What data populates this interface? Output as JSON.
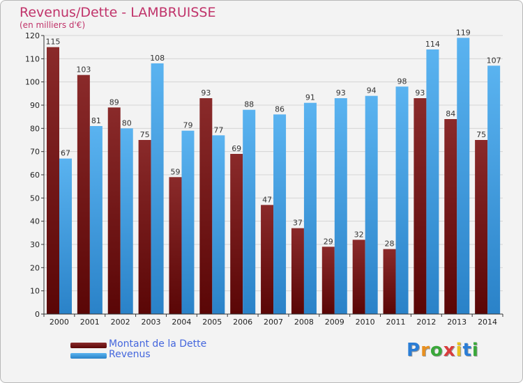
{
  "chart_data": {
    "type": "bar",
    "title": "Revenus/Dette - LAMBRUISSE",
    "subtitle": "(en milliers d'€)",
    "categories": [
      "2000",
      "2001",
      "2002",
      "2003",
      "2004",
      "2005",
      "2006",
      "2007",
      "2008",
      "2009",
      "2010",
      "2011",
      "2012",
      "2013",
      "2014"
    ],
    "series": [
      {
        "name": "Montant de la Dette",
        "color": "#7a1a1a",
        "values": [
          115,
          103,
          89,
          75,
          59,
          93,
          69,
          47,
          37,
          29,
          32,
          28,
          93,
          84,
          75
        ]
      },
      {
        "name": "Revenus",
        "color": "#3d9be0",
        "values": [
          67,
          81,
          80,
          108,
          79,
          77,
          88,
          86,
          91,
          93,
          94,
          98,
          114,
          119,
          107
        ]
      }
    ],
    "ylim": [
      0,
      120
    ],
    "yticks": [
      0,
      10,
      20,
      30,
      40,
      50,
      60,
      70,
      80,
      90,
      100,
      110,
      120
    ],
    "grid": true,
    "legend_position": "bottom-left"
  },
  "logo": {
    "letters": [
      "P",
      "r",
      "o",
      "x",
      "i",
      "t",
      "i"
    ],
    "colors": [
      "#2a7dd6",
      "#e8901f",
      "#3aa83a",
      "#d93c3c",
      "#e8c21f",
      "#2a7dd6",
      "#3aa83a"
    ]
  }
}
